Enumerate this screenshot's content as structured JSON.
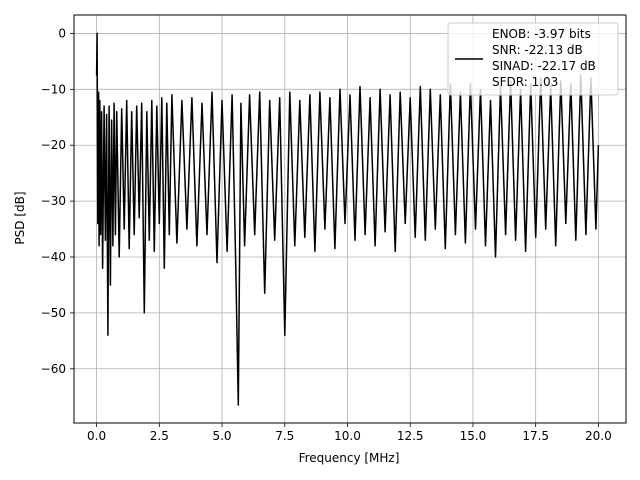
{
  "chart_data": {
    "type": "line",
    "xlabel": "Frequency [MHz]",
    "ylabel": "PSD [dB]",
    "xlim": [
      -0.9,
      21.1
    ],
    "ylim": [
      -69.7,
      3.3
    ],
    "x_ticks": [
      0.0,
      2.5,
      5.0,
      7.5,
      10.0,
      12.5,
      15.0,
      17.5,
      20.0
    ],
    "x_tick_labels": [
      "0.0",
      "2.5",
      "5.0",
      "7.5",
      "10.0",
      "12.5",
      "15.0",
      "17.5",
      "20.0"
    ],
    "y_ticks": [
      0,
      -10,
      -20,
      -30,
      -40,
      -50,
      -60
    ],
    "y_tick_labels": [
      "0",
      "−10",
      "−20",
      "−30",
      "−40",
      "−50",
      "−60"
    ],
    "grid": true,
    "legend_position": "top-right",
    "legend_lines": [
      "ENOB: -3.97 bits",
      "SNR: -22.13 dB",
      "SINAD: -22.17 dB",
      "SFDR: 1.03"
    ],
    "series_color": "#000000",
    "series": [
      {
        "name": "ENOB: -3.97 bits\nSNR: -22.13 dB\nSINAD: -22.17 dB\nSFDR: 1.03",
        "x": [
          0.0,
          0.02,
          0.05,
          0.08,
          0.1,
          0.13,
          0.16,
          0.2,
          0.24,
          0.3,
          0.35,
          0.4,
          0.45,
          0.5,
          0.55,
          0.6,
          0.65,
          0.7,
          0.75,
          0.8,
          0.9,
          1.0,
          1.1,
          1.2,
          1.3,
          1.4,
          1.5,
          1.6,
          1.7,
          1.8,
          1.9,
          2.0,
          2.1,
          2.2,
          2.3,
          2.4,
          2.5,
          2.6,
          2.7,
          2.8,
          2.9,
          3.0,
          3.2,
          3.4,
          3.6,
          3.8,
          4.0,
          4.2,
          4.4,
          4.6,
          4.8,
          5.0,
          5.2,
          5.4,
          5.55,
          5.65,
          5.75,
          5.9,
          6.1,
          6.3,
          6.5,
          6.7,
          6.9,
          7.1,
          7.3,
          7.5,
          7.7,
          7.9,
          8.1,
          8.3,
          8.5,
          8.7,
          8.9,
          9.1,
          9.3,
          9.5,
          9.7,
          9.9,
          10.1,
          10.3,
          10.5,
          10.7,
          10.9,
          11.1,
          11.3,
          11.5,
          11.7,
          11.9,
          12.1,
          12.3,
          12.5,
          12.7,
          12.9,
          13.1,
          13.3,
          13.5,
          13.7,
          13.9,
          14.1,
          14.3,
          14.5,
          14.7,
          14.9,
          15.1,
          15.3,
          15.5,
          15.7,
          15.9,
          16.1,
          16.3,
          16.5,
          16.7,
          16.9,
          17.1,
          17.3,
          17.5,
          17.7,
          17.9,
          18.1,
          18.3,
          18.5,
          18.7,
          18.9,
          19.1,
          19.3,
          19.5,
          19.7,
          19.9,
          20.0
        ],
        "y": [
          -7.5,
          0.0,
          -34.0,
          -10.5,
          -38.0,
          -12.0,
          -36.0,
          -14.0,
          -42.0,
          -13.0,
          -37.0,
          -14.5,
          -54.0,
          -13.0,
          -45.0,
          -15.5,
          -38.0,
          -12.5,
          -36.0,
          -14.0,
          -40.0,
          -13.5,
          -35.0,
          -12.0,
          -38.5,
          -14.0,
          -36.0,
          -13.0,
          -33.0,
          -12.5,
          -50.0,
          -14.0,
          -37.0,
          -12.0,
          -39.0,
          -13.0,
          -34.0,
          -11.5,
          -42.0,
          -12.5,
          -36.0,
          -11.0,
          -37.5,
          -12.0,
          -35.0,
          -11.5,
          -38.0,
          -12.5,
          -36.0,
          -10.5,
          -41.0,
          -12.0,
          -39.0,
          -11.0,
          -42.0,
          -66.5,
          -12.5,
          -38.0,
          -11.0,
          -36.0,
          -10.5,
          -46.5,
          -12.0,
          -37.0,
          -11.5,
          -54.0,
          -10.5,
          -38.0,
          -12.0,
          -36.5,
          -11.0,
          -39.0,
          -10.5,
          -35.0,
          -11.5,
          -38.5,
          -10.0,
          -34.0,
          -11.0,
          -37.0,
          -9.5,
          -36.0,
          -11.5,
          -38.0,
          -10.0,
          -35.5,
          -11.0,
          -39.0,
          -10.5,
          -34.0,
          -11.5,
          -36.5,
          -9.5,
          -37.0,
          -10.0,
          -35.0,
          -11.0,
          -38.5,
          -9.0,
          -36.0,
          -10.5,
          -37.5,
          -9.0,
          -35.0,
          -10.0,
          -38.0,
          -12.0,
          -40.0,
          -9.5,
          -36.0,
          -8.5,
          -37.0,
          -10.0,
          -39.0,
          -9.0,
          -36.5,
          -8.0,
          -35.0,
          -9.5,
          -38.0,
          -8.5,
          -34.0,
          -9.0,
          -37.0,
          -7.5,
          -36.0,
          -8.0,
          -35.0,
          -20.0
        ]
      }
    ]
  }
}
